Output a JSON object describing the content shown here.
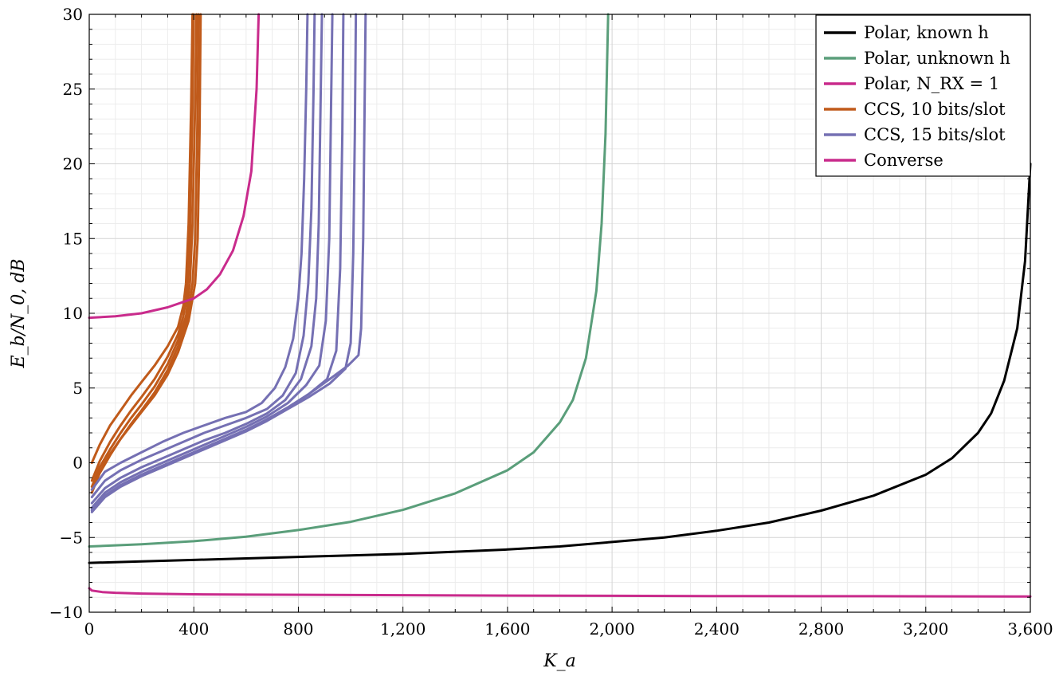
{
  "chart_data": {
    "type": "line",
    "title": "",
    "xlabel": "K_a",
    "ylabel": "E_b/N_0, dB",
    "xlim": [
      0,
      3600
    ],
    "ylim": [
      -10,
      30
    ],
    "x_ticks": [
      0,
      400,
      800,
      1200,
      1600,
      2000,
      2400,
      2800,
      3200,
      3600
    ],
    "x_tick_labels": [
      "0",
      "400",
      "800",
      "1,200",
      "1,600",
      "2,000",
      "2,400",
      "2,800",
      "3,200",
      "3,600"
    ],
    "y_ticks": [
      -10,
      -5,
      0,
      5,
      10,
      15,
      20,
      25,
      30
    ],
    "y_tick_labels": [
      "−10",
      "−5",
      "0",
      "5",
      "10",
      "15",
      "20",
      "25",
      "30"
    ],
    "grid": true,
    "legend_position": "top-right",
    "legend": [
      {
        "label": "Polar, known h",
        "color": "#000000"
      },
      {
        "label": "Polar, unknown h",
        "color": "#5a9e7a"
      },
      {
        "label": "Polar, N_RX = 1",
        "color": "#c92b8c"
      },
      {
        "label": "CCS, 10 bits/slot",
        "color": "#c05a1a"
      },
      {
        "label": "CCS, 15 bits/slot",
        "color": "#7570b3"
      },
      {
        "label": "Converse",
        "color": "#c92b8c"
      }
    ],
    "series": [
      {
        "name": "Polar, known h",
        "color": "#000000",
        "x": [
          0,
          200,
          400,
          600,
          800,
          1000,
          1200,
          1400,
          1600,
          1800,
          2000,
          2200,
          2400,
          2600,
          2800,
          3000,
          3200,
          3300,
          3400,
          3450,
          3500,
          3550,
          3580,
          3600
        ],
        "y": [
          -6.7,
          -6.6,
          -6.5,
          -6.4,
          -6.3,
          -6.2,
          -6.1,
          -5.95,
          -5.8,
          -5.6,
          -5.3,
          -5.0,
          -4.55,
          -4.0,
          -3.2,
          -2.2,
          -0.8,
          0.3,
          2.0,
          3.3,
          5.5,
          9.0,
          13.5,
          20.0
        ]
      },
      {
        "name": "Polar, unknown h",
        "color": "#5a9e7a",
        "x": [
          0,
          200,
          400,
          600,
          800,
          1000,
          1200,
          1400,
          1600,
          1700,
          1800,
          1850,
          1900,
          1940,
          1960,
          1975,
          1985
        ],
        "y": [
          -5.6,
          -5.45,
          -5.25,
          -4.95,
          -4.5,
          -3.95,
          -3.15,
          -2.05,
          -0.5,
          0.7,
          2.7,
          4.2,
          7.0,
          11.5,
          16.0,
          22.0,
          30.0
        ]
      },
      {
        "name": "Polar, N_RX = 1",
        "color": "#c92b8c",
        "x": [
          0,
          100,
          200,
          300,
          400,
          450,
          500,
          550,
          590,
          620,
          640,
          648
        ],
        "y": [
          9.7,
          9.8,
          10.0,
          10.4,
          11.0,
          11.6,
          12.6,
          14.2,
          16.5,
          19.5,
          25.0,
          30.0
        ]
      },
      {
        "name": "Converse",
        "color": "#c92b8c",
        "x": [
          0,
          10,
          50,
          100,
          200,
          400,
          600,
          1000,
          1500,
          2000,
          2500,
          3000,
          3600
        ],
        "y": [
          -8.4,
          -8.55,
          -8.65,
          -8.7,
          -8.75,
          -8.8,
          -8.82,
          -8.85,
          -8.88,
          -8.9,
          -8.92,
          -8.93,
          -8.95
        ]
      }
    ],
    "ccs10": {
      "name": "CCS, 10 bits/slot",
      "color": "#c05a1a",
      "curves": [
        {
          "x": [
            10,
            40,
            80,
            120,
            160,
            200,
            250,
            300,
            340,
            360,
            370,
            380,
            390,
            395
          ],
          "y": [
            0.0,
            1.2,
            2.5,
            3.5,
            4.5,
            5.4,
            6.5,
            7.8,
            9.1,
            10.5,
            12.0,
            16.0,
            24.0,
            30.0
          ]
        },
        {
          "x": [
            10,
            40,
            80,
            120,
            160,
            200,
            250,
            300,
            340,
            360,
            375,
            385,
            395,
            400
          ],
          "y": [
            -1.2,
            0.1,
            1.4,
            2.5,
            3.5,
            4.4,
            5.6,
            7.1,
            8.6,
            9.8,
            11.5,
            15.0,
            24.0,
            30.0
          ]
        },
        {
          "x": [
            10,
            40,
            80,
            120,
            160,
            200,
            250,
            300,
            340,
            370,
            385,
            395,
            405,
            410
          ],
          "y": [
            -1.6,
            -0.3,
            0.9,
            2.0,
            3.0,
            3.9,
            5.1,
            6.6,
            8.2,
            9.8,
            12.0,
            16.0,
            24.0,
            30.0
          ]
        },
        {
          "x": [
            10,
            40,
            80,
            120,
            160,
            200,
            250,
            300,
            340,
            375,
            395,
            405,
            413,
            418
          ],
          "y": [
            -2.0,
            -0.7,
            0.5,
            1.6,
            2.6,
            3.5,
            4.7,
            6.2,
            7.8,
            9.6,
            12.0,
            15.0,
            22.0,
            30.0
          ]
        },
        {
          "x": [
            10,
            40,
            80,
            120,
            160,
            200,
            250,
            300,
            340,
            380,
            405,
            415,
            422,
            426
          ],
          "y": [
            -1.8,
            -0.6,
            0.6,
            1.6,
            2.5,
            3.4,
            4.5,
            5.9,
            7.4,
            9.5,
            12.0,
            15.0,
            22.0,
            30.0
          ]
        }
      ]
    },
    "ccs15": {
      "name": "CCS, 15 bits/slot",
      "color": "#7570b3",
      "curves": [
        {
          "x": [
            10,
            60,
            120,
            200,
            280,
            360,
            440,
            520,
            600,
            660,
            710,
            750,
            780,
            800,
            812,
            822,
            830,
            835
          ],
          "y": [
            -1.8,
            -0.6,
            0.0,
            0.7,
            1.4,
            2.0,
            2.5,
            3.0,
            3.4,
            4.0,
            5.0,
            6.4,
            8.3,
            11.0,
            14.0,
            19.0,
            25.0,
            30.0
          ]
        },
        {
          "x": [
            10,
            60,
            120,
            200,
            280,
            360,
            440,
            520,
            600,
            680,
            740,
            790,
            820,
            838,
            850,
            858,
            862
          ],
          "y": [
            -2.3,
            -1.2,
            -0.5,
            0.2,
            0.8,
            1.4,
            2.0,
            2.5,
            3.0,
            3.6,
            4.5,
            6.0,
            8.5,
            12.0,
            17.0,
            25.0,
            30.0
          ]
        },
        {
          "x": [
            10,
            60,
            120,
            200,
            280,
            360,
            440,
            520,
            600,
            680,
            750,
            810,
            850,
            868,
            878,
            885,
            890
          ],
          "y": [
            -2.7,
            -1.7,
            -1.0,
            -0.3,
            0.3,
            0.9,
            1.5,
            2.0,
            2.6,
            3.3,
            4.2,
            5.6,
            7.8,
            11.0,
            16.0,
            24.0,
            30.0
          ]
        },
        {
          "x": [
            10,
            60,
            120,
            200,
            280,
            360,
            440,
            520,
            600,
            680,
            760,
            830,
            880,
            905,
            918,
            925,
            930
          ],
          "y": [
            -3.0,
            -2.0,
            -1.3,
            -0.6,
            0.0,
            0.6,
            1.2,
            1.8,
            2.4,
            3.1,
            4.0,
            5.2,
            6.5,
            9.5,
            15.0,
            24.0,
            30.0
          ]
        },
        {
          "x": [
            10,
            60,
            120,
            200,
            280,
            360,
            440,
            520,
            600,
            680,
            760,
            840,
            910,
            945,
            960,
            968,
            972
          ],
          "y": [
            -3.2,
            -2.2,
            -1.5,
            -0.8,
            -0.2,
            0.4,
            1.0,
            1.6,
            2.2,
            2.9,
            3.7,
            4.6,
            5.6,
            7.5,
            13.0,
            22.0,
            30.0
          ]
        },
        {
          "x": [
            10,
            60,
            120,
            200,
            280,
            360,
            440,
            520,
            600,
            680,
            760,
            840,
            920,
            980,
            1000,
            1010,
            1016,
            1020
          ],
          "y": [
            -3.3,
            -2.3,
            -1.6,
            -0.9,
            -0.3,
            0.3,
            0.9,
            1.5,
            2.1,
            2.8,
            3.6,
            4.4,
            5.3,
            6.3,
            8.0,
            14.0,
            22.0,
            30.0
          ]
        },
        {
          "x": [
            10,
            60,
            120,
            200,
            280,
            360,
            440,
            520,
            600,
            680,
            760,
            840,
            920,
            990,
            1030,
            1040,
            1048,
            1053,
            1057
          ],
          "y": [
            -3.1,
            -2.2,
            -1.5,
            -0.8,
            -0.2,
            0.4,
            1.0,
            1.6,
            2.2,
            2.9,
            3.7,
            4.6,
            5.6,
            6.5,
            7.2,
            9.0,
            15.0,
            23.0,
            30.0
          ]
        }
      ]
    }
  }
}
